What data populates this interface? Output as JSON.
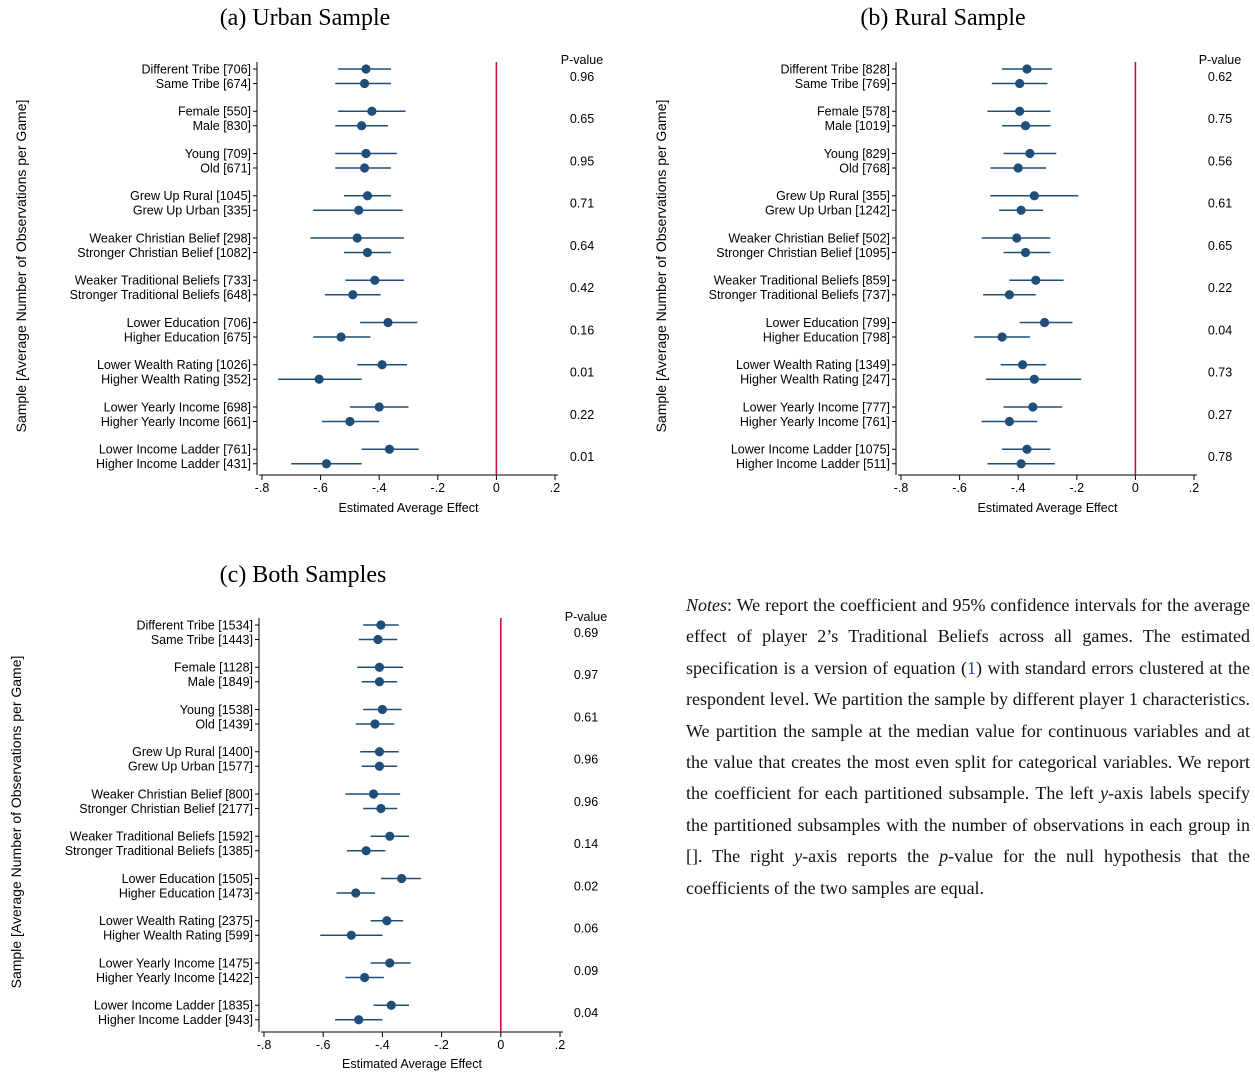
{
  "chart_data": [
    {
      "type": "scatter",
      "title": "(a) Urban Sample",
      "xlabel": "Estimated Average Effect",
      "ylabel": "Sample [Average Number of Observations per Game]",
      "pvalue_header": "P-value",
      "xlim": [
        -0.8,
        0.2
      ],
      "xticks": [
        -0.8,
        -0.6,
        -0.4,
        -0.2,
        0,
        0.2
      ],
      "xtick_labels": [
        "-.8",
        "-.6",
        "-.4",
        "-.2",
        "0",
        ".2"
      ],
      "reference_line": 0,
      "colors": {
        "point": "#1f4e79",
        "reference": "#c0143c"
      },
      "groups": [
        {
          "rows": [
            {
              "label": "Different Tribe [706]",
              "est": -0.445,
              "lo": -0.54,
              "hi": -0.36
            },
            {
              "label": "Same Tribe [674]",
              "est": -0.45,
              "lo": -0.55,
              "hi": -0.36
            }
          ],
          "pvalue": "0.96"
        },
        {
          "rows": [
            {
              "label": "Female [550]",
              "est": -0.425,
              "lo": -0.54,
              "hi": -0.31
            },
            {
              "label": "Male [830]",
              "est": -0.46,
              "lo": -0.55,
              "hi": -0.37
            }
          ],
          "pvalue": "0.65"
        },
        {
          "rows": [
            {
              "label": "Young [709]",
              "est": -0.445,
              "lo": -0.55,
              "hi": -0.34
            },
            {
              "label": "Old [671]",
              "est": -0.45,
              "lo": -0.55,
              "hi": -0.36
            }
          ],
          "pvalue": "0.95"
        },
        {
          "rows": [
            {
              "label": "Grew Up Rural [1045]",
              "est": -0.44,
              "lo": -0.52,
              "hi": -0.36
            },
            {
              "label": "Grew Up Urban [335]",
              "est": -0.47,
              "lo": -0.625,
              "hi": -0.32
            }
          ],
          "pvalue": "0.71"
        },
        {
          "rows": [
            {
              "label": "Weaker Christian Belief [298]",
              "est": -0.475,
              "lo": -0.635,
              "hi": -0.315
            },
            {
              "label": "Stronger Christian Belief [1082]",
              "est": -0.44,
              "lo": -0.52,
              "hi": -0.36
            }
          ],
          "pvalue": "0.64"
        },
        {
          "rows": [
            {
              "label": "Weaker Traditional Beliefs [733]",
              "est": -0.415,
              "lo": -0.515,
              "hi": -0.315
            },
            {
              "label": "Stronger Traditional Beliefs [648]",
              "est": -0.49,
              "lo": -0.585,
              "hi": -0.395
            }
          ],
          "pvalue": "0.42"
        },
        {
          "rows": [
            {
              "label": "Lower Education [706]",
              "est": -0.37,
              "lo": -0.465,
              "hi": -0.27
            },
            {
              "label": "Higher Education [675]",
              "est": -0.53,
              "lo": -0.625,
              "hi": -0.43
            }
          ],
          "pvalue": "0.16"
        },
        {
          "rows": [
            {
              "label": "Lower Wealth Rating [1026]",
              "est": -0.39,
              "lo": -0.475,
              "hi": -0.305
            },
            {
              "label": "Higher Wealth Rating [352]",
              "est": -0.605,
              "lo": -0.745,
              "hi": -0.46
            }
          ],
          "pvalue": "0.01"
        },
        {
          "rows": [
            {
              "label": "Lower Yearly Income [698]",
              "est": -0.4,
              "lo": -0.5,
              "hi": -0.3
            },
            {
              "label": "Higher Yearly Income [661]",
              "est": -0.5,
              "lo": -0.595,
              "hi": -0.4
            }
          ],
          "pvalue": "0.22"
        },
        {
          "rows": [
            {
              "label": "Lower Income Ladder [761]",
              "est": -0.365,
              "lo": -0.46,
              "hi": -0.265
            },
            {
              "label": "Higher Income Ladder [431]",
              "est": -0.58,
              "lo": -0.7,
              "hi": -0.46
            }
          ],
          "pvalue": "0.01"
        }
      ]
    },
    {
      "type": "scatter",
      "title": "(b) Rural Sample",
      "xlabel": "Estimated Average Effect",
      "ylabel": "Sample [Average Number of Observations per Game]",
      "pvalue_header": "P-value",
      "xlim": [
        -0.8,
        0.2
      ],
      "xticks": [
        -0.8,
        -0.6,
        -0.4,
        -0.2,
        0,
        0.2
      ],
      "xtick_labels": [
        "-.8",
        "-.6",
        "-.4",
        "-.2",
        "0",
        ".2"
      ],
      "reference_line": 0,
      "colors": {
        "point": "#1f4e79",
        "reference": "#c0143c"
      },
      "groups": [
        {
          "rows": [
            {
              "label": "Different Tribe [828]",
              "est": -0.37,
              "lo": -0.455,
              "hi": -0.285
            },
            {
              "label": "Same Tribe [769]",
              "est": -0.395,
              "lo": -0.49,
              "hi": -0.3
            }
          ],
          "pvalue": "0.62"
        },
        {
          "rows": [
            {
              "label": "Female [578]",
              "est": -0.395,
              "lo": -0.505,
              "hi": -0.29
            },
            {
              "label": "Male [1019]",
              "est": -0.375,
              "lo": -0.455,
              "hi": -0.29
            }
          ],
          "pvalue": "0.75"
        },
        {
          "rows": [
            {
              "label": "Young [829]",
              "est": -0.36,
              "lo": -0.45,
              "hi": -0.27
            },
            {
              "label": "Old [768]",
              "est": -0.4,
              "lo": -0.495,
              "hi": -0.305
            }
          ],
          "pvalue": "0.56"
        },
        {
          "rows": [
            {
              "label": "Grew Up Rural [355]",
              "est": -0.345,
              "lo": -0.495,
              "hi": -0.195
            },
            {
              "label": "Grew Up Urban [1242]",
              "est": -0.39,
              "lo": -0.465,
              "hi": -0.315
            }
          ],
          "pvalue": "0.61"
        },
        {
          "rows": [
            {
              "label": "Weaker Christian Belief [502]",
              "est": -0.405,
              "lo": -0.525,
              "hi": -0.29
            },
            {
              "label": "Stronger Christian Belief [1095]",
              "est": -0.375,
              "lo": -0.45,
              "hi": -0.29
            }
          ],
          "pvalue": "0.65"
        },
        {
          "rows": [
            {
              "label": "Weaker Traditional Beliefs [859]",
              "est": -0.34,
              "lo": -0.43,
              "hi": -0.245
            },
            {
              "label": "Stronger Traditional Beliefs [737]",
              "est": -0.43,
              "lo": -0.52,
              "hi": -0.34
            }
          ],
          "pvalue": "0.22"
        },
        {
          "rows": [
            {
              "label": "Lower Education [799]",
              "est": -0.31,
              "lo": -0.395,
              "hi": -0.215
            },
            {
              "label": "Higher Education [798]",
              "est": -0.455,
              "lo": -0.55,
              "hi": -0.36
            }
          ],
          "pvalue": "0.04"
        },
        {
          "rows": [
            {
              "label": "Lower Wealth Rating [1349]",
              "est": -0.385,
              "lo": -0.46,
              "hi": -0.305
            },
            {
              "label": "Higher Wealth Rating [247]",
              "est": -0.345,
              "lo": -0.51,
              "hi": -0.185
            }
          ],
          "pvalue": "0.73"
        },
        {
          "rows": [
            {
              "label": "Lower Yearly Income [777]",
              "est": -0.35,
              "lo": -0.45,
              "hi": -0.25
            },
            {
              "label": "Higher Yearly Income [761]",
              "est": -0.43,
              "lo": -0.525,
              "hi": -0.335
            }
          ],
          "pvalue": "0.27"
        },
        {
          "rows": [
            {
              "label": "Lower Income Ladder [1075]",
              "est": -0.37,
              "lo": -0.455,
              "hi": -0.29
            },
            {
              "label": "Higher Income Ladder [511]",
              "est": -0.39,
              "lo": -0.505,
              "hi": -0.275
            }
          ],
          "pvalue": "0.78"
        }
      ]
    },
    {
      "type": "scatter",
      "title": "(c) Both Samples",
      "xlabel": "Estimated Average Effect",
      "ylabel": "Sample [Average Number of Observations per Game]",
      "pvalue_header": "P-value",
      "xlim": [
        -0.8,
        0.2
      ],
      "xticks": [
        -0.8,
        -0.6,
        -0.4,
        -0.2,
        0,
        0.2
      ],
      "xtick_labels": [
        "-.8",
        "-.6",
        "-.4",
        "-.2",
        "0",
        ".2"
      ],
      "reference_line": 0,
      "colors": {
        "point": "#1f4e79",
        "reference": "#c0143c"
      },
      "groups": [
        {
          "rows": [
            {
              "label": "Different Tribe [1534]",
              "est": -0.405,
              "lo": -0.465,
              "hi": -0.345
            },
            {
              "label": "Same Tribe [1443]",
              "est": -0.415,
              "lo": -0.48,
              "hi": -0.35
            }
          ],
          "pvalue": "0.69"
        },
        {
          "rows": [
            {
              "label": "Female [1128]",
              "est": -0.41,
              "lo": -0.485,
              "hi": -0.33
            },
            {
              "label": "Male [1849]",
              "est": -0.41,
              "lo": -0.47,
              "hi": -0.35
            }
          ],
          "pvalue": "0.97"
        },
        {
          "rows": [
            {
              "label": "Young [1538]",
              "est": -0.4,
              "lo": -0.465,
              "hi": -0.335
            },
            {
              "label": "Old [1439]",
              "est": -0.425,
              "lo": -0.49,
              "hi": -0.36
            }
          ],
          "pvalue": "0.61"
        },
        {
          "rows": [
            {
              "label": "Grew Up Rural [1400]",
              "est": -0.41,
              "lo": -0.475,
              "hi": -0.345
            },
            {
              "label": "Grew Up Urban [1577]",
              "est": -0.41,
              "lo": -0.47,
              "hi": -0.35
            }
          ],
          "pvalue": "0.96"
        },
        {
          "rows": [
            {
              "label": "Weaker Christian Belief [800]",
              "est": -0.43,
              "lo": -0.525,
              "hi": -0.34
            },
            {
              "label": "Stronger Christian Belief [2177]",
              "est": -0.405,
              "lo": -0.465,
              "hi": -0.35
            }
          ],
          "pvalue": "0.96"
        },
        {
          "rows": [
            {
              "label": "Weaker Traditional Beliefs [1592]",
              "est": -0.375,
              "lo": -0.44,
              "hi": -0.31
            },
            {
              "label": "Stronger Traditional Beliefs [1385]",
              "est": -0.455,
              "lo": -0.52,
              "hi": -0.39
            }
          ],
          "pvalue": "0.14"
        },
        {
          "rows": [
            {
              "label": "Lower Education [1505]",
              "est": -0.335,
              "lo": -0.405,
              "hi": -0.27
            },
            {
              "label": "Higher Education [1473]",
              "est": -0.49,
              "lo": -0.555,
              "hi": -0.425
            }
          ],
          "pvalue": "0.02"
        },
        {
          "rows": [
            {
              "label": "Lower Wealth Rating [2375]",
              "est": -0.385,
              "lo": -0.44,
              "hi": -0.33
            },
            {
              "label": "Higher Wealth Rating [599]",
              "est": -0.505,
              "lo": -0.61,
              "hi": -0.4
            }
          ],
          "pvalue": "0.06"
        },
        {
          "rows": [
            {
              "label": "Lower Yearly Income [1475]",
              "est": -0.375,
              "lo": -0.44,
              "hi": -0.305
            },
            {
              "label": "Higher Yearly Income [1422]",
              "est": -0.46,
              "lo": -0.525,
              "hi": -0.395
            }
          ],
          "pvalue": "0.09"
        },
        {
          "rows": [
            {
              "label": "Lower Income Ladder [1835]",
              "est": -0.37,
              "lo": -0.43,
              "hi": -0.31
            },
            {
              "label": "Higher Income Ladder [943]",
              "est": -0.48,
              "lo": -0.56,
              "hi": -0.4
            }
          ],
          "pvalue": "0.04"
        }
      ]
    }
  ],
  "notes": {
    "label": "Notes",
    "p1": ": We report the coefficient and 95% confidence intervals for the average effect of player 2’s Traditional Beliefs across all games. The estimated specification is a version of equation (",
    "eq_ref": "1",
    "p2": ") with standard errors clustered at the respondent level. We partition the sample by different player 1 characteristics. We partition the sample at the median value for continuous variables and at the value that creates the most even split for categorical variables. We report the coefficient for each partitioned subsample. The left ",
    "y1": "y",
    "p3": "-axis labels specify the partitioned subsamples with the number of observations in each group in []. The right ",
    "y2": "y",
    "p4": "-axis reports the ",
    "pv": "p",
    "p5": "-value for the null hypothesis that the coefficients of the two samples are equal."
  }
}
